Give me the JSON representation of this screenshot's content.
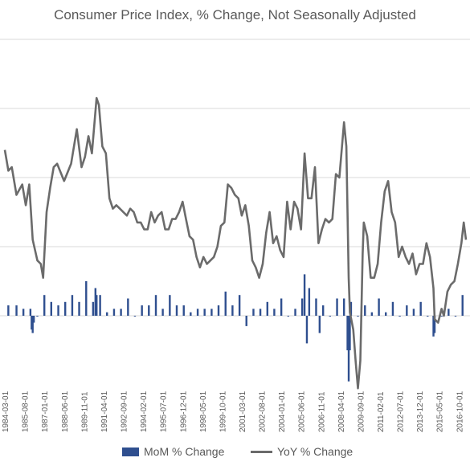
{
  "chart_data": {
    "type": "bar+line",
    "title": "Consumer Price Index, % Change, Not Seasonally Adjusted",
    "colors": {
      "mom": "#2f4f8f",
      "yoy": "#6b6b6b",
      "grid": "#d9d9d9"
    },
    "grid": true,
    "legend_position": "bottom",
    "x_start": "1984-03-01",
    "x_end": "2017-04-01",
    "x_tick_labels": [
      "1984-03-01",
      "1985-08-01",
      "1987-01-01",
      "1988-06-01",
      "1989-11-01",
      "1991-04-01",
      "1992-09-01",
      "1994-02-01",
      "1995-07-01",
      "1996-12-01",
      "1998-05-01",
      "1999-10-01",
      "2001-03-01",
      "2002-08-01",
      "2004-01-01",
      "2005-06-01",
      "2006-11-01",
      "2008-04-01",
      "2009-09-01",
      "2011-02-01",
      "2012-07-01",
      "2013-12-01",
      "2015-05-01",
      "2016-10-01"
    ],
    "series": [
      {
        "name": "MoM % Change",
        "style": "bar",
        "points": [
          [
            "1984-06-01",
            0.3
          ],
          [
            "1985-01-01",
            0.3
          ],
          [
            "1985-07-01",
            0.2
          ],
          [
            "1986-01-01",
            0.2
          ],
          [
            "1986-02-01",
            -0.4
          ],
          [
            "1986-03-01",
            -0.5
          ],
          [
            "1986-04-01",
            -0.2
          ],
          [
            "1986-07-01",
            0.0
          ],
          [
            "1987-01-01",
            0.6
          ],
          [
            "1987-07-01",
            0.4
          ],
          [
            "1988-01-01",
            0.3
          ],
          [
            "1988-07-01",
            0.4
          ],
          [
            "1989-01-01",
            0.6
          ],
          [
            "1989-07-01",
            0.4
          ],
          [
            "1990-01-01",
            1.0
          ],
          [
            "1990-07-01",
            0.4
          ],
          [
            "1990-09-01",
            0.8
          ],
          [
            "1990-10-01",
            0.6
          ],
          [
            "1991-01-01",
            0.6
          ],
          [
            "1991-07-01",
            0.1
          ],
          [
            "1992-01-01",
            0.2
          ],
          [
            "1992-07-01",
            0.2
          ],
          [
            "1993-01-01",
            0.5
          ],
          [
            "1993-07-01",
            0.0
          ],
          [
            "1994-01-01",
            0.3
          ],
          [
            "1994-07-01",
            0.3
          ],
          [
            "1995-01-01",
            0.6
          ],
          [
            "1995-07-01",
            0.2
          ],
          [
            "1996-01-01",
            0.6
          ],
          [
            "1996-07-01",
            0.3
          ],
          [
            "1997-01-01",
            0.3
          ],
          [
            "1997-07-01",
            0.1
          ],
          [
            "1998-01-01",
            0.2
          ],
          [
            "1998-07-01",
            0.2
          ],
          [
            "1999-01-01",
            0.2
          ],
          [
            "1999-07-01",
            0.3
          ],
          [
            "2000-01-01",
            0.7
          ],
          [
            "2000-07-01",
            0.3
          ],
          [
            "2001-01-01",
            0.6
          ],
          [
            "2001-07-01",
            -0.3
          ],
          [
            "2002-01-01",
            0.2
          ],
          [
            "2002-07-01",
            0.2
          ],
          [
            "2003-01-01",
            0.4
          ],
          [
            "2003-07-01",
            0.2
          ],
          [
            "2004-01-01",
            0.5
          ],
          [
            "2004-07-01",
            0.0
          ],
          [
            "2005-01-01",
            0.2
          ],
          [
            "2005-07-01",
            0.5
          ],
          [
            "2005-09-01",
            1.2
          ],
          [
            "2005-11-01",
            -0.8
          ],
          [
            "2006-01-01",
            0.8
          ],
          [
            "2006-07-01",
            0.5
          ],
          [
            "2006-10-01",
            -0.5
          ],
          [
            "2007-01-01",
            0.3
          ],
          [
            "2007-07-01",
            0.0
          ],
          [
            "2008-01-01",
            0.5
          ],
          [
            "2008-07-01",
            0.5
          ],
          [
            "2008-10-01",
            -1.0
          ],
          [
            "2008-11-01",
            -1.9
          ],
          [
            "2008-12-01",
            -1.0
          ],
          [
            "2009-01-01",
            0.4
          ],
          [
            "2009-07-01",
            0.0
          ],
          [
            "2010-01-01",
            0.3
          ],
          [
            "2010-07-01",
            0.1
          ],
          [
            "2011-01-01",
            0.5
          ],
          [
            "2011-07-01",
            0.1
          ],
          [
            "2012-01-01",
            0.4
          ],
          [
            "2012-07-01",
            0.0
          ],
          [
            "2013-01-01",
            0.3
          ],
          [
            "2013-07-01",
            0.2
          ],
          [
            "2014-01-01",
            0.4
          ],
          [
            "2014-07-01",
            0.0
          ],
          [
            "2014-12-01",
            -0.6
          ],
          [
            "2015-01-01",
            -0.5
          ],
          [
            "2015-07-01",
            0.0
          ],
          [
            "2016-01-01",
            0.2
          ],
          [
            "2016-07-01",
            0.0
          ],
          [
            "2017-01-01",
            0.6
          ]
        ]
      },
      {
        "name": "YoY % Change",
        "style": "line",
        "points": [
          [
            "1984-03-01",
            4.8
          ],
          [
            "1984-06-01",
            4.2
          ],
          [
            "1984-09-01",
            4.3
          ],
          [
            "1985-01-01",
            3.5
          ],
          [
            "1985-06-01",
            3.8
          ],
          [
            "1985-09-01",
            3.2
          ],
          [
            "1985-12-01",
            3.8
          ],
          [
            "1986-03-01",
            2.2
          ],
          [
            "1986-07-01",
            1.6
          ],
          [
            "1986-10-01",
            1.5
          ],
          [
            "1986-12-01",
            1.1
          ],
          [
            "1987-03-01",
            3.0
          ],
          [
            "1987-06-01",
            3.7
          ],
          [
            "1987-09-01",
            4.3
          ],
          [
            "1987-12-01",
            4.4
          ],
          [
            "1988-06-01",
            3.9
          ],
          [
            "1988-12-01",
            4.4
          ],
          [
            "1989-05-01",
            5.4
          ],
          [
            "1989-09-01",
            4.3
          ],
          [
            "1989-12-01",
            4.6
          ],
          [
            "1990-03-01",
            5.2
          ],
          [
            "1990-06-01",
            4.7
          ],
          [
            "1990-10-01",
            6.3
          ],
          [
            "1990-12-01",
            6.1
          ],
          [
            "1991-03-01",
            4.9
          ],
          [
            "1991-06-01",
            4.7
          ],
          [
            "1991-09-01",
            3.4
          ],
          [
            "1991-12-01",
            3.1
          ],
          [
            "1992-03-01",
            3.2
          ],
          [
            "1992-06-01",
            3.1
          ],
          [
            "1992-09-01",
            3.0
          ],
          [
            "1992-12-01",
            2.9
          ],
          [
            "1993-03-01",
            3.1
          ],
          [
            "1993-06-01",
            3.0
          ],
          [
            "1993-09-01",
            2.7
          ],
          [
            "1993-12-01",
            2.7
          ],
          [
            "1994-03-01",
            2.5
          ],
          [
            "1994-06-01",
            2.5
          ],
          [
            "1994-09-01",
            3.0
          ],
          [
            "1994-12-01",
            2.7
          ],
          [
            "1995-03-01",
            2.9
          ],
          [
            "1995-06-01",
            3.0
          ],
          [
            "1995-09-01",
            2.5
          ],
          [
            "1995-12-01",
            2.5
          ],
          [
            "1996-03-01",
            2.8
          ],
          [
            "1996-06-01",
            2.8
          ],
          [
            "1996-09-01",
            3.0
          ],
          [
            "1996-12-01",
            3.3
          ],
          [
            "1997-03-01",
            2.8
          ],
          [
            "1997-06-01",
            2.3
          ],
          [
            "1997-09-01",
            2.2
          ],
          [
            "1997-12-01",
            1.7
          ],
          [
            "1998-03-01",
            1.4
          ],
          [
            "1998-06-01",
            1.7
          ],
          [
            "1998-09-01",
            1.5
          ],
          [
            "1998-12-01",
            1.6
          ],
          [
            "1999-03-01",
            1.7
          ],
          [
            "1999-06-01",
            2.0
          ],
          [
            "1999-09-01",
            2.6
          ],
          [
            "1999-12-01",
            2.7
          ],
          [
            "2000-03-01",
            3.8
          ],
          [
            "2000-06-01",
            3.7
          ],
          [
            "2000-09-01",
            3.5
          ],
          [
            "2000-12-01",
            3.4
          ],
          [
            "2001-03-01",
            2.9
          ],
          [
            "2001-06-01",
            3.2
          ],
          [
            "2001-09-01",
            2.6
          ],
          [
            "2001-12-01",
            1.6
          ],
          [
            "2002-03-01",
            1.4
          ],
          [
            "2002-06-01",
            1.1
          ],
          [
            "2002-09-01",
            1.5
          ],
          [
            "2002-12-01",
            2.4
          ],
          [
            "2003-03-01",
            3.0
          ],
          [
            "2003-06-01",
            2.1
          ],
          [
            "2003-09-01",
            2.3
          ],
          [
            "2003-12-01",
            1.9
          ],
          [
            "2004-03-01",
            1.7
          ],
          [
            "2004-06-01",
            3.3
          ],
          [
            "2004-09-01",
            2.5
          ],
          [
            "2004-12-01",
            3.3
          ],
          [
            "2005-03-01",
            3.1
          ],
          [
            "2005-06-01",
            2.5
          ],
          [
            "2005-09-01",
            4.7
          ],
          [
            "2005-12-01",
            3.4
          ],
          [
            "2006-03-01",
            3.4
          ],
          [
            "2006-06-01",
            4.3
          ],
          [
            "2006-09-01",
            2.1
          ],
          [
            "2006-12-01",
            2.5
          ],
          [
            "2007-03-01",
            2.8
          ],
          [
            "2007-06-01",
            2.7
          ],
          [
            "2007-09-01",
            2.8
          ],
          [
            "2007-12-01",
            4.1
          ],
          [
            "2008-03-01",
            4.0
          ],
          [
            "2008-07-01",
            5.6
          ],
          [
            "2008-09-01",
            4.9
          ],
          [
            "2008-11-01",
            1.1
          ],
          [
            "2008-12-01",
            0.1
          ],
          [
            "2009-03-01",
            -0.4
          ],
          [
            "2009-05-01",
            -1.3
          ],
          [
            "2009-07-01",
            -2.1
          ],
          [
            "2009-09-01",
            -1.3
          ],
          [
            "2009-11-01",
            1.8
          ],
          [
            "2009-12-01",
            2.7
          ],
          [
            "2010-03-01",
            2.3
          ],
          [
            "2010-06-01",
            1.1
          ],
          [
            "2010-09-01",
            1.1
          ],
          [
            "2010-12-01",
            1.5
          ],
          [
            "2011-03-01",
            2.7
          ],
          [
            "2011-06-01",
            3.6
          ],
          [
            "2011-09-01",
            3.9
          ],
          [
            "2011-12-01",
            3.0
          ],
          [
            "2012-03-01",
            2.7
          ],
          [
            "2012-06-01",
            1.7
          ],
          [
            "2012-09-01",
            2.0
          ],
          [
            "2012-12-01",
            1.7
          ],
          [
            "2013-03-01",
            1.5
          ],
          [
            "2013-06-01",
            1.8
          ],
          [
            "2013-09-01",
            1.2
          ],
          [
            "2013-12-01",
            1.5
          ],
          [
            "2014-03-01",
            1.5
          ],
          [
            "2014-06-01",
            2.1
          ],
          [
            "2014-09-01",
            1.7
          ],
          [
            "2014-12-01",
            0.8
          ],
          [
            "2015-01-01",
            -0.1
          ],
          [
            "2015-04-01",
            -0.2
          ],
          [
            "2015-07-01",
            0.2
          ],
          [
            "2015-09-01",
            0.0
          ],
          [
            "2015-12-01",
            0.7
          ],
          [
            "2016-03-01",
            0.9
          ],
          [
            "2016-06-01",
            1.0
          ],
          [
            "2016-09-01",
            1.5
          ],
          [
            "2016-12-01",
            2.1
          ],
          [
            "2017-02-01",
            2.7
          ],
          [
            "2017-04-01",
            2.2
          ]
        ]
      }
    ],
    "y_range": [
      -3,
      10
    ],
    "y_gridlines": [
      -2,
      0,
      2,
      4,
      6,
      8,
      10
    ]
  }
}
